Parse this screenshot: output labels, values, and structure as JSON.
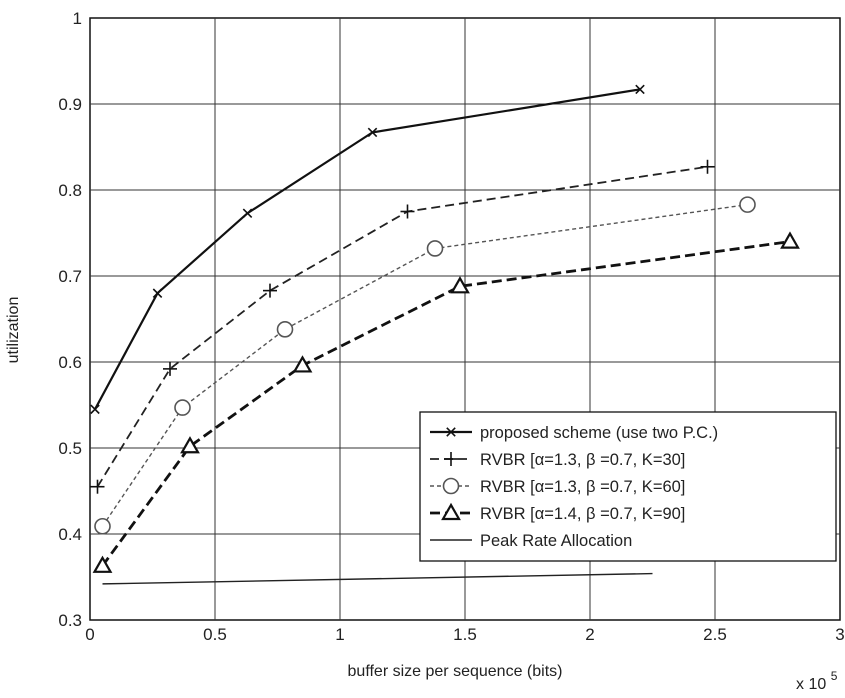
{
  "chart_data": {
    "type": "line",
    "title": "",
    "xlabel": "buffer size per sequence (bits)",
    "ylabel": "utilization",
    "x_multiplier_label": "x 10",
    "x_multiplier_exp": "5",
    "xlim": [
      0,
      3
    ],
    "ylim": [
      0.3,
      1
    ],
    "xticks": [
      0,
      0.5,
      1,
      1.5,
      2,
      2.5,
      3
    ],
    "xtick_labels": [
      "0",
      "0.5",
      "1",
      "1.5",
      "2",
      "2.5",
      "3"
    ],
    "yticks": [
      0.3,
      0.4,
      0.5,
      0.6,
      0.7,
      0.8,
      0.9,
      1
    ],
    "ytick_labels": [
      "0.3",
      "0.4",
      "0.5",
      "0.6",
      "0.7",
      "0.8",
      "0.9",
      "1"
    ],
    "grid": true,
    "legend_position": "bottom-right",
    "series": [
      {
        "name": "proposed scheme (use two P.C.)",
        "marker": "x",
        "dash": "solid",
        "x": [
          0.02,
          0.27,
          0.63,
          1.13,
          2.2
        ],
        "y": [
          0.545,
          0.68,
          0.773,
          0.867,
          0.917
        ]
      },
      {
        "name": "RVBR [α=1.3, β =0.7, K=30]",
        "marker": "plus",
        "dash": "dashed",
        "x": [
          0.03,
          0.32,
          0.72,
          1.27,
          2.47
        ],
        "y": [
          0.455,
          0.592,
          0.683,
          0.775,
          0.827
        ]
      },
      {
        "name": "RVBR [α=1.3, β =0.7, K=60]",
        "marker": "circle",
        "dash": "dotted",
        "x": [
          0.05,
          0.37,
          0.78,
          1.38,
          2.63
        ],
        "y": [
          0.409,
          0.547,
          0.638,
          0.732,
          0.783
        ]
      },
      {
        "name": "RVBR [α=1.4, β =0.7, K=90]",
        "marker": "triangle",
        "dash": "dashed-bold",
        "x": [
          0.05,
          0.4,
          0.85,
          1.48,
          2.8
        ],
        "y": [
          0.363,
          0.502,
          0.596,
          0.688,
          0.74
        ]
      },
      {
        "name": "Peak Rate Allocation",
        "marker": "none",
        "dash": "solid-thin",
        "x": [
          0.05,
          2.25
        ],
        "y": [
          0.342,
          0.354
        ]
      }
    ]
  }
}
